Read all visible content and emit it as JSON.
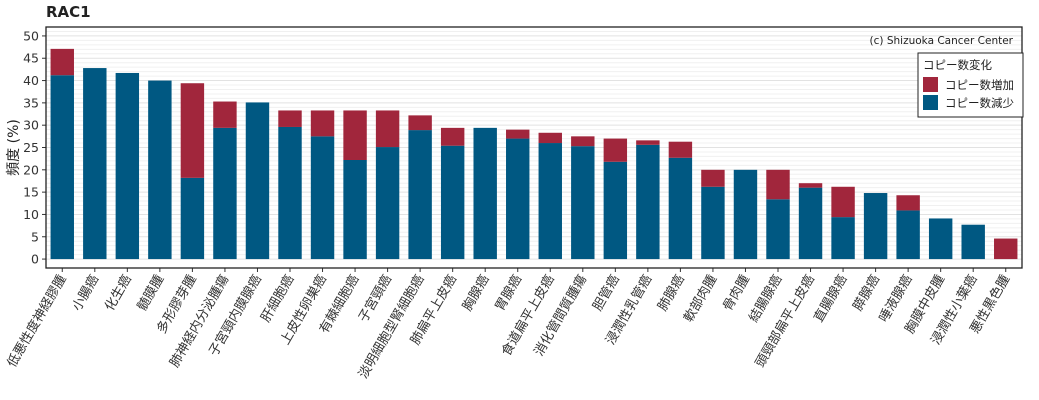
{
  "chart_data": {
    "type": "bar",
    "stacked": true,
    "title": "RAC1",
    "copyright": "(c) Shizuoka Cancer Center",
    "ylabel": "頻度 (%)",
    "xlabel": "",
    "ylim": [
      -2,
      52
    ],
    "yticks": [
      0,
      5,
      10,
      15,
      20,
      25,
      30,
      35,
      40,
      45,
      50
    ],
    "grid": true,
    "legend_position": "top-right",
    "legend_title": "コピー数変化",
    "categories": [
      "低悪性度神経膠腫",
      "小腸癌",
      "化生癌",
      "髄膜腫",
      "多形膠芽腫",
      "肺神経内分泌腫瘍",
      "子宮頸内膜腺癌",
      "肝細胞癌",
      "上皮性卵巣癌",
      "有棘細胞癌",
      "子宮頸癌",
      "淡明細胞型腎細胞癌",
      "肺扁平上皮癌",
      "胸腺癌",
      "胃腺癌",
      "食道扁平上皮癌",
      "消化管間質腫瘍",
      "胆管癌",
      "浸潤性乳管癌",
      "肺腺癌",
      "軟部肉腫",
      "骨肉腫",
      "結腸腺癌",
      "頭頸部扁平上皮癌",
      "直腸腺癌",
      "膵腺癌",
      "唾液腺癌",
      "胸膜中皮腫",
      "浸潤性小葉癌",
      "悪性黒色腫"
    ],
    "series": [
      {
        "name": "コピー数減少",
        "color": "#005882",
        "values": [
          41.2,
          42.8,
          41.7,
          40.0,
          18.2,
          29.4,
          35.1,
          29.6,
          27.5,
          22.2,
          25.1,
          28.9,
          25.4,
          29.4,
          27.0,
          26.0,
          25.3,
          21.8,
          25.6,
          22.7,
          16.2,
          20.0,
          13.4,
          16.0,
          9.4,
          14.8,
          10.9,
          9.1,
          7.7,
          0.0
        ]
      },
      {
        "name": "コピー数増加",
        "color": "#A1263C",
        "values": [
          5.9,
          0.0,
          0.0,
          0.0,
          21.2,
          5.9,
          0.0,
          3.7,
          5.8,
          11.1,
          8.2,
          3.3,
          4.0,
          0.0,
          2.0,
          2.3,
          2.2,
          5.2,
          1.0,
          3.6,
          3.8,
          0.0,
          6.6,
          1.0,
          6.8,
          0.0,
          3.4,
          0.0,
          0.0,
          4.6
        ]
      }
    ]
  }
}
